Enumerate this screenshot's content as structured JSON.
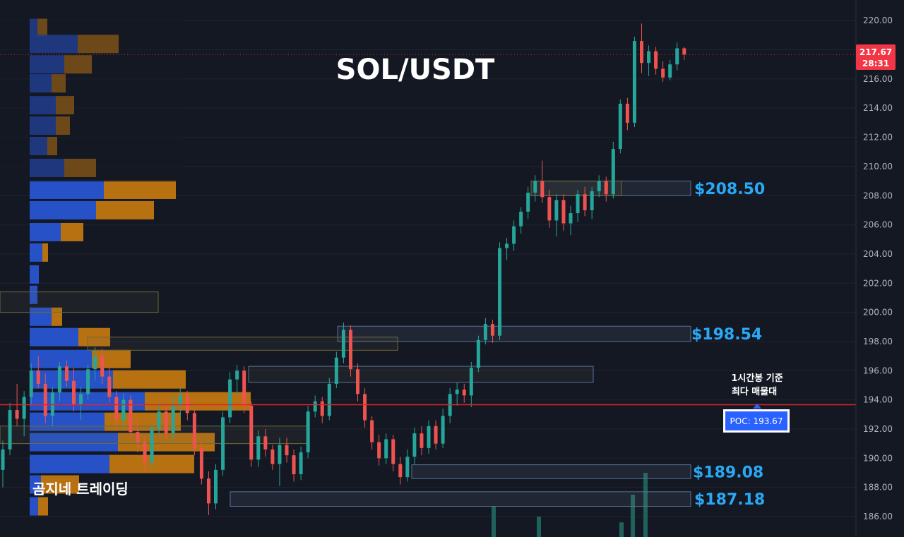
{
  "chart_data": {
    "type": "candlestick",
    "title": "SOL/USDT",
    "watermark": "곰지네 트레이딩",
    "y_axis": {
      "position": "right",
      "range": [
        185,
        220.5
      ],
      "ticks": [
        "186.00",
        "188.00",
        "190.00",
        "192.00",
        "194.00",
        "196.00",
        "198.00",
        "200.00",
        "202.00",
        "204.00",
        "206.00",
        "208.00",
        "210.00",
        "212.00",
        "214.00",
        "216.00",
        "218.00",
        "220.00"
      ]
    },
    "grid": true,
    "current_price": {
      "value": "217.67",
      "countdown": "28:31",
      "numeric": 217.67
    },
    "poc": {
      "label": "POC: 193.67",
      "value": 193.67,
      "note_line1": "1시간봉 기준",
      "note_line2": "최다 매물대"
    },
    "zones": [
      {
        "label": "$208.50",
        "low": 208.0,
        "high": 209.0
      },
      {
        "label": "$198.54",
        "low": 198.0,
        "high": 199.05
      },
      {
        "label": "$189.08",
        "low": 188.6,
        "high": 189.55
      },
      {
        "label": "$187.18",
        "low": 186.7,
        "high": 187.7
      }
    ],
    "candles_ohlc": [
      [
        189.2,
        191.2,
        188.0,
        190.6
      ],
      [
        190.6,
        193.8,
        190.2,
        193.3
      ],
      [
        193.3,
        195.1,
        192.2,
        192.7
      ],
      [
        192.7,
        194.6,
        191.5,
        194.2
      ],
      [
        194.2,
        196.5,
        193.6,
        196.0
      ],
      [
        196.0,
        197.0,
        194.8,
        195.1
      ],
      [
        195.1,
        195.8,
        192.4,
        192.9
      ],
      [
        192.9,
        194.9,
        192.2,
        194.5
      ],
      [
        194.5,
        196.6,
        193.9,
        196.3
      ],
      [
        196.3,
        196.7,
        194.9,
        195.3
      ],
      [
        195.3,
        196.2,
        193.2,
        193.7
      ],
      [
        193.7,
        194.9,
        192.6,
        194.4
      ],
      [
        194.4,
        196.4,
        194.0,
        196.1
      ],
      [
        196.1,
        197.6,
        195.3,
        197.0
      ],
      [
        197.0,
        197.5,
        195.1,
        195.6
      ],
      [
        195.6,
        196.3,
        193.8,
        194.2
      ],
      [
        194.2,
        194.6,
        192.0,
        192.6
      ],
      [
        192.6,
        194.4,
        192.1,
        194.0
      ],
      [
        194.0,
        194.3,
        191.4,
        191.8
      ],
      [
        191.8,
        192.8,
        190.4,
        191.1
      ],
      [
        191.1,
        191.5,
        189.2,
        189.7
      ],
      [
        189.7,
        192.4,
        189.4,
        192.0
      ],
      [
        192.0,
        193.8,
        191.6,
        193.2
      ],
      [
        193.2,
        193.7,
        191.3,
        191.7
      ],
      [
        191.7,
        194.3,
        191.2,
        193.6
      ],
      [
        193.6,
        194.8,
        192.8,
        194.3
      ],
      [
        194.3,
        194.6,
        192.6,
        193.1
      ],
      [
        193.1,
        193.4,
        190.2,
        190.7
      ],
      [
        190.7,
        191.1,
        188.2,
        188.6
      ],
      [
        188.6,
        189.1,
        186.1,
        186.9
      ],
      [
        186.9,
        189.6,
        186.5,
        189.2
      ],
      [
        189.2,
        193.2,
        188.8,
        192.8
      ],
      [
        192.8,
        195.9,
        192.4,
        195.4
      ],
      [
        195.4,
        196.4,
        194.3,
        196.0
      ],
      [
        196.0,
        196.3,
        193.1,
        193.6
      ],
      [
        193.6,
        193.9,
        189.4,
        189.9
      ],
      [
        189.9,
        191.9,
        189.4,
        191.5
      ],
      [
        191.5,
        192.0,
        190.1,
        190.6
      ],
      [
        190.6,
        190.9,
        189.2,
        189.6
      ],
      [
        189.6,
        191.4,
        188.1,
        190.9
      ],
      [
        190.9,
        191.4,
        189.7,
        190.2
      ],
      [
        190.2,
        190.6,
        188.4,
        188.9
      ],
      [
        188.9,
        190.8,
        188.5,
        190.4
      ],
      [
        190.4,
        193.6,
        190.0,
        193.2
      ],
      [
        193.2,
        194.3,
        192.8,
        193.9
      ],
      [
        193.9,
        194.2,
        192.4,
        192.9
      ],
      [
        192.9,
        195.5,
        192.6,
        195.1
      ],
      [
        195.1,
        197.3,
        194.8,
        196.9
      ],
      [
        196.9,
        199.3,
        196.5,
        198.8
      ],
      [
        198.8,
        199.1,
        195.6,
        196.1
      ],
      [
        196.1,
        196.5,
        193.9,
        194.4
      ],
      [
        194.4,
        194.8,
        192.1,
        192.6
      ],
      [
        192.6,
        192.9,
        190.6,
        191.1
      ],
      [
        191.1,
        191.6,
        189.5,
        190.0
      ],
      [
        190.0,
        191.7,
        189.6,
        191.3
      ],
      [
        191.3,
        191.6,
        189.1,
        189.6
      ],
      [
        189.6,
        190.1,
        188.2,
        188.7
      ],
      [
        188.7,
        190.6,
        188.4,
        190.1
      ],
      [
        190.1,
        192.1,
        189.6,
        191.7
      ],
      [
        191.7,
        192.2,
        190.2,
        190.7
      ],
      [
        190.7,
        192.6,
        190.3,
        192.2
      ],
      [
        192.2,
        192.6,
        190.6,
        191.0
      ],
      [
        191.0,
        193.4,
        190.7,
        192.9
      ],
      [
        192.9,
        194.8,
        192.4,
        194.4
      ],
      [
        194.4,
        195.2,
        193.6,
        194.7
      ],
      [
        194.7,
        195.1,
        193.8,
        194.3
      ],
      [
        194.3,
        196.6,
        193.5,
        196.2
      ],
      [
        196.2,
        198.4,
        195.9,
        198.1
      ],
      [
        198.1,
        199.6,
        197.8,
        199.2
      ],
      [
        199.2,
        199.5,
        197.9,
        198.4
      ],
      [
        198.4,
        204.8,
        198.1,
        204.4
      ],
      [
        204.4,
        205.1,
        203.6,
        204.7
      ],
      [
        204.7,
        206.3,
        204.2,
        205.9
      ],
      [
        205.9,
        207.2,
        205.4,
        206.9
      ],
      [
        206.9,
        208.6,
        206.4,
        208.2
      ],
      [
        208.2,
        209.4,
        207.6,
        209.0
      ],
      [
        209.0,
        210.4,
        207.5,
        207.9
      ],
      [
        207.9,
        208.4,
        205.8,
        206.3
      ],
      [
        206.3,
        208.1,
        205.2,
        207.7
      ],
      [
        207.7,
        208.1,
        205.6,
        206.1
      ],
      [
        206.1,
        207.3,
        205.3,
        206.8
      ],
      [
        206.8,
        208.4,
        206.2,
        208.1
      ],
      [
        208.1,
        208.6,
        206.6,
        207.0
      ],
      [
        207.0,
        208.6,
        206.4,
        208.3
      ],
      [
        208.3,
        209.4,
        207.9,
        209.0
      ],
      [
        209.0,
        209.3,
        207.6,
        208.1
      ],
      [
        208.1,
        211.7,
        207.8,
        211.2
      ],
      [
        211.2,
        214.6,
        210.9,
        214.3
      ],
      [
        214.3,
        214.7,
        212.5,
        213.0
      ],
      [
        213.0,
        218.9,
        212.7,
        218.6
      ],
      [
        218.6,
        219.8,
        216.4,
        217.1
      ],
      [
        217.1,
        218.3,
        216.2,
        217.9
      ],
      [
        217.9,
        218.2,
        216.3,
        216.7
      ],
      [
        216.7,
        217.2,
        215.8,
        216.1
      ],
      [
        216.1,
        217.3,
        215.9,
        217.0
      ],
      [
        217.0,
        218.5,
        216.6,
        218.1
      ],
      [
        218.1,
        218.2,
        217.3,
        217.67
      ]
    ],
    "volume_profile_rows": [
      [
        219.5,
        11,
        14
      ],
      [
        218.4,
        68,
        58
      ],
      [
        217.0,
        49,
        39
      ],
      [
        215.7,
        31,
        20
      ],
      [
        214.2,
        37,
        26
      ],
      [
        212.8,
        37,
        20
      ],
      [
        211.4,
        25,
        14
      ],
      [
        209.9,
        49,
        45
      ],
      [
        208.4,
        105,
        102
      ],
      [
        207.0,
        94,
        82
      ],
      [
        205.5,
        44,
        32
      ],
      [
        204.1,
        18,
        8
      ],
      [
        202.6,
        13,
        0
      ],
      [
        201.2,
        11,
        0
      ],
      [
        199.7,
        31,
        15
      ],
      [
        198.3,
        69,
        45
      ],
      [
        196.8,
        88,
        55
      ],
      [
        195.4,
        118,
        103
      ],
      [
        193.9,
        163,
        150
      ],
      [
        192.5,
        106,
        108
      ],
      [
        191.1,
        125,
        137
      ],
      [
        189.6,
        113,
        120
      ],
      [
        188.2,
        16,
        54
      ],
      [
        186.7,
        12,
        14
      ]
    ],
    "volume_spikes": [
      [
        699,
        186.7
      ],
      [
        763,
        186.0
      ],
      [
        880,
        185.6
      ],
      [
        896,
        187.5
      ],
      [
        914,
        189.0
      ]
    ],
    "colors": {
      "background": "#141823",
      "grid": "#1f2432",
      "up": "#26a69a",
      "down": "#ef5350",
      "poc_line": "#e0242a",
      "price_tag": "#f23645",
      "poc_box": "#2962ff",
      "zone_text": "#29a9f5",
      "vp_buy": "#2957d6",
      "vp_sell": "#c67a10"
    }
  }
}
